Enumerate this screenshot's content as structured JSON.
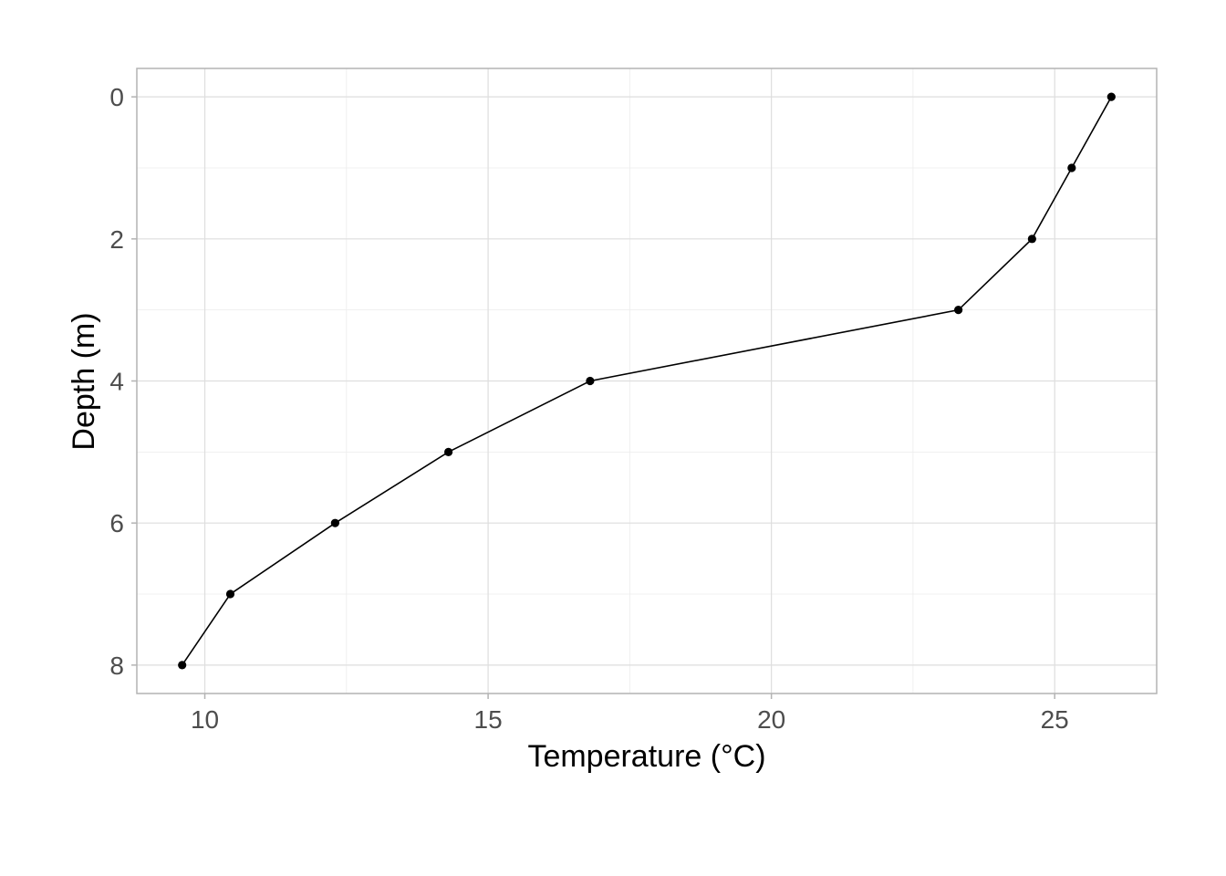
{
  "chart_data": {
    "type": "line",
    "title": "",
    "xlabel": "Temperature (°C)",
    "ylabel": "Depth (m)",
    "xlim": [
      8.8,
      26.8
    ],
    "ylim": [
      -0.4,
      8.4
    ],
    "y_reversed": true,
    "x_ticks": [
      10,
      15,
      20,
      25
    ],
    "y_ticks": [
      0,
      2,
      4,
      6,
      8
    ],
    "x_tick_labels": [
      "10",
      "15",
      "20",
      "25"
    ],
    "y_tick_labels": [
      "0",
      "2",
      "4",
      "6",
      "8"
    ],
    "grid": true,
    "legend": "none",
    "series": [
      {
        "color": "#000000",
        "points": [
          {
            "x": 26.0,
            "y": 0
          },
          {
            "x": 25.3,
            "y": 1
          },
          {
            "x": 24.6,
            "y": 2
          },
          {
            "x": 23.3,
            "y": 3
          },
          {
            "x": 16.8,
            "y": 4
          },
          {
            "x": 14.3,
            "y": 5
          },
          {
            "x": 12.3,
            "y": 6
          },
          {
            "x": 10.45,
            "y": 7
          },
          {
            "x": 9.6,
            "y": 8
          }
        ]
      }
    ]
  }
}
